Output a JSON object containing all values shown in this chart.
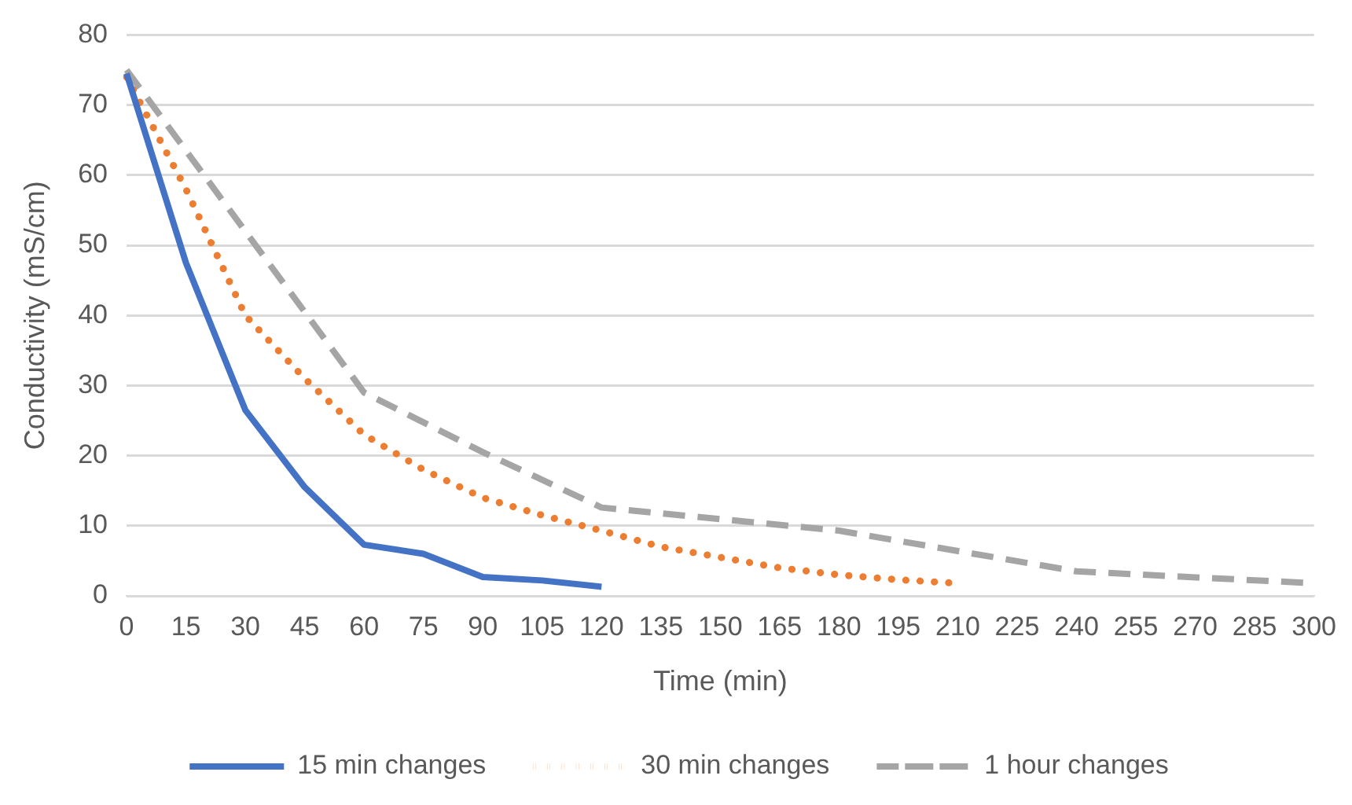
{
  "chart_data": {
    "type": "line",
    "xlabel": "Time (min)",
    "ylabel": "Conductivity (mS/cm)",
    "categories": [
      "0",
      "15",
      "30",
      "45",
      "60",
      "75",
      "90",
      "105",
      "120",
      "135",
      "150",
      "165",
      "180",
      "195",
      "210",
      "225",
      "240",
      "255",
      "270",
      "285",
      "300"
    ],
    "ylim": [
      0,
      80
    ],
    "yticks": [
      0,
      10,
      20,
      30,
      40,
      50,
      60,
      70,
      80
    ],
    "grid": "y",
    "legend": "bottom",
    "marker": "none",
    "series": [
      {
        "name": "15 min changes",
        "color": "#4472c4",
        "line_style": "solid",
        "values": [
          74.5,
          47.5,
          26.5,
          15.5,
          7.3,
          6,
          2.7,
          2.2,
          1.3,
          null,
          null,
          null,
          null,
          null,
          null,
          null,
          null,
          null,
          null,
          null,
          null
        ]
      },
      {
        "name": "30 min changes",
        "color": "#ed7d31",
        "line_style": "dotted",
        "values": [
          74,
          58,
          40,
          31,
          23,
          18,
          14,
          11.5,
          9.3,
          7,
          5.5,
          4,
          3,
          2.3,
          1.8,
          null,
          null,
          null,
          null,
          null,
          null
        ]
      },
      {
        "name": "1 hour changes",
        "color": "#a5a5a5",
        "line_style": "dashed",
        "values": [
          75,
          null,
          null,
          null,
          29,
          null,
          20.5,
          null,
          12.6,
          null,
          null,
          null,
          9.3,
          null,
          null,
          null,
          3.5,
          null,
          null,
          null,
          1.8
        ]
      }
    ]
  }
}
